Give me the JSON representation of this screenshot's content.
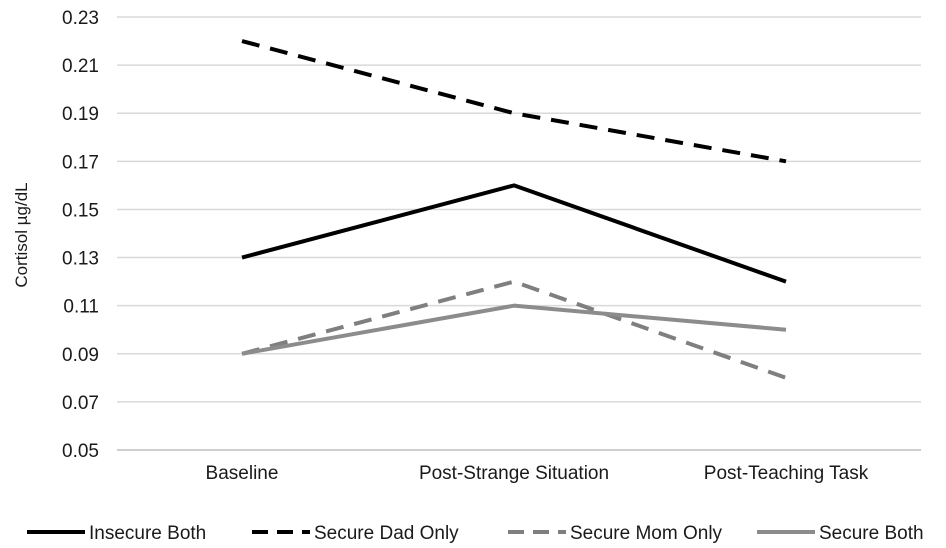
{
  "chart_data": {
    "type": "line",
    "title": "",
    "xlabel": "",
    "ylabel": "Cortisol µg/dL",
    "categories": [
      "Baseline",
      "Post-Strange Situation",
      "Post-Teaching Task"
    ],
    "ylim": [
      0.05,
      0.23
    ],
    "yticks": [
      "0.05",
      "0.07",
      "0.09",
      "0.11",
      "0.13",
      "0.15",
      "0.17",
      "0.19",
      "0.21",
      "0.23"
    ],
    "ytick_values": [
      0.05,
      0.07,
      0.09,
      0.11,
      0.13,
      0.15,
      0.17,
      0.19,
      0.21,
      0.23
    ],
    "grid": true,
    "legend_position": "bottom",
    "series": [
      {
        "name": "Insecure Both",
        "values": [
          0.13,
          0.16,
          0.12
        ],
        "color": "#000000",
        "dash": "solid"
      },
      {
        "name": "Secure Dad Only",
        "values": [
          0.22,
          0.19,
          0.17
        ],
        "color": "#000000",
        "dash": "dashed"
      },
      {
        "name": "Secure Mom Only",
        "values": [
          0.09,
          0.12,
          0.08
        ],
        "color": "#7f7f7f",
        "dash": "dashed"
      },
      {
        "name": "Secure Both",
        "values": [
          0.09,
          0.11,
          0.1
        ],
        "color": "#8c8c8c",
        "dash": "solid"
      }
    ]
  }
}
